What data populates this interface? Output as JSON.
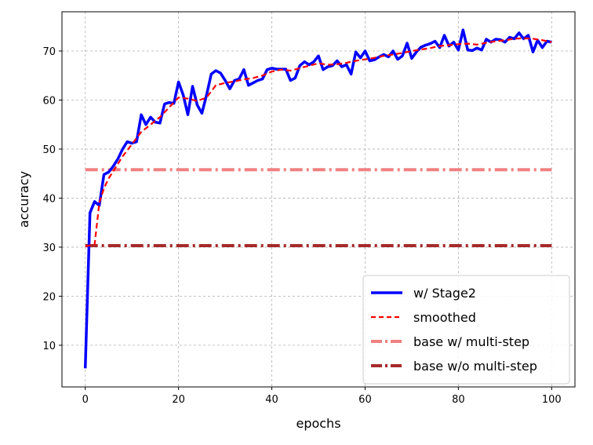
{
  "chart_data": {
    "type": "line",
    "xlabel": "epochs",
    "ylabel": "accuracy",
    "xlim": [
      -5,
      105
    ],
    "ylim": [
      1.5,
      78
    ],
    "xticks": [
      0,
      20,
      40,
      60,
      80,
      100
    ],
    "yticks": [
      10,
      20,
      30,
      40,
      50,
      60,
      70
    ],
    "grid": true,
    "legend_position": "lower-right",
    "series": [
      {
        "name": "w/ Stage2",
        "color": "#0000ff",
        "style": "solid",
        "x": [
          0,
          1,
          2,
          3,
          4,
          5,
          6,
          7,
          8,
          9,
          10,
          11,
          12,
          13,
          14,
          15,
          16,
          17,
          18,
          19,
          20,
          21,
          22,
          23,
          24,
          25,
          26,
          27,
          28,
          29,
          30,
          31,
          32,
          33,
          34,
          35,
          36,
          37,
          38,
          39,
          40,
          41,
          42,
          43,
          44,
          45,
          46,
          47,
          48,
          49,
          50,
          51,
          52,
          53,
          54,
          55,
          56,
          57,
          58,
          59,
          60,
          61,
          62,
          63,
          64,
          65,
          66,
          67,
          68,
          69,
          70,
          71,
          72,
          73,
          74,
          75,
          76,
          77,
          78,
          79,
          80,
          81,
          82,
          83,
          84,
          85,
          86,
          87,
          88,
          89,
          90,
          91,
          92,
          93,
          94,
          95,
          96,
          97,
          98,
          99,
          100
        ],
        "y": [
          5.3,
          37,
          39.3,
          38.5,
          44.8,
          45.3,
          46.5,
          48,
          50,
          51.5,
          51.2,
          51.5,
          57,
          55,
          56.5,
          55.5,
          55.3,
          59.2,
          59.5,
          59.3,
          63.7,
          61,
          57,
          62.8,
          59,
          57.3,
          61,
          65.3,
          66,
          65.5,
          64,
          62.3,
          64,
          64.3,
          66.2,
          63,
          63.5,
          64,
          64.3,
          66.2,
          66.5,
          66.3,
          66.3,
          66.3,
          64,
          64.5,
          67,
          67.8,
          67.2,
          67.8,
          69,
          66.2,
          66.8,
          67,
          68,
          66.8,
          67.2,
          65.3,
          69.8,
          68.6,
          70,
          68,
          68.2,
          68.8,
          69.3,
          68.8,
          70,
          68.3,
          69,
          71.6,
          68.5,
          69.8,
          70.8,
          71.2,
          71.5,
          72,
          70.7,
          73.2,
          71,
          71.8,
          70.2,
          74.3,
          70.2,
          70.1,
          70.6,
          70.2,
          72.4,
          71.8,
          72.4,
          72.3,
          71.8,
          72.8,
          72.5,
          73.7,
          72.5,
          73.2,
          69.8,
          72.2,
          70.7,
          72,
          71.8
        ]
      },
      {
        "name": "smoothed",
        "color": "#ff0000",
        "style": "dashed",
        "x": [
          0,
          2,
          3,
          4,
          5,
          6,
          8,
          10,
          12,
          14,
          16,
          18,
          20,
          22,
          24,
          26,
          28,
          30,
          32,
          34,
          36,
          38,
          40,
          42,
          44,
          46,
          48,
          50,
          52,
          54,
          56,
          58,
          60,
          62,
          64,
          66,
          68,
          70,
          72,
          74,
          76,
          78,
          80,
          82,
          84,
          86,
          88,
          90,
          92,
          94,
          96,
          98,
          100
        ],
        "y": [
          30.2,
          30.5,
          39,
          42,
          44,
          45.5,
          48.5,
          51,
          53.5,
          55,
          56.5,
          58.5,
          60.5,
          60.3,
          59.8,
          60.5,
          63,
          63.5,
          63.8,
          64.2,
          64.5,
          65,
          65.8,
          66.2,
          66,
          66.5,
          67,
          67.5,
          67.2,
          67.3,
          67.6,
          68,
          68.3,
          68.6,
          69,
          69.3,
          69.6,
          70,
          70.3,
          70.6,
          71,
          71.2,
          71.4,
          71.5,
          71.3,
          71.7,
          72,
          72.2,
          72.5,
          72.6,
          72.5,
          72.2,
          71.8
        ]
      },
      {
        "name": "base w/ multi-step",
        "color": "#f08080",
        "style": "dashdot",
        "x": [
          0,
          100
        ],
        "y": [
          45.8,
          45.8
        ]
      },
      {
        "name": "base w/o multi-step",
        "color": "#a52a2a",
        "style": "dashdot",
        "x": [
          0,
          100
        ],
        "y": [
          30.3,
          30.3
        ]
      }
    ]
  }
}
